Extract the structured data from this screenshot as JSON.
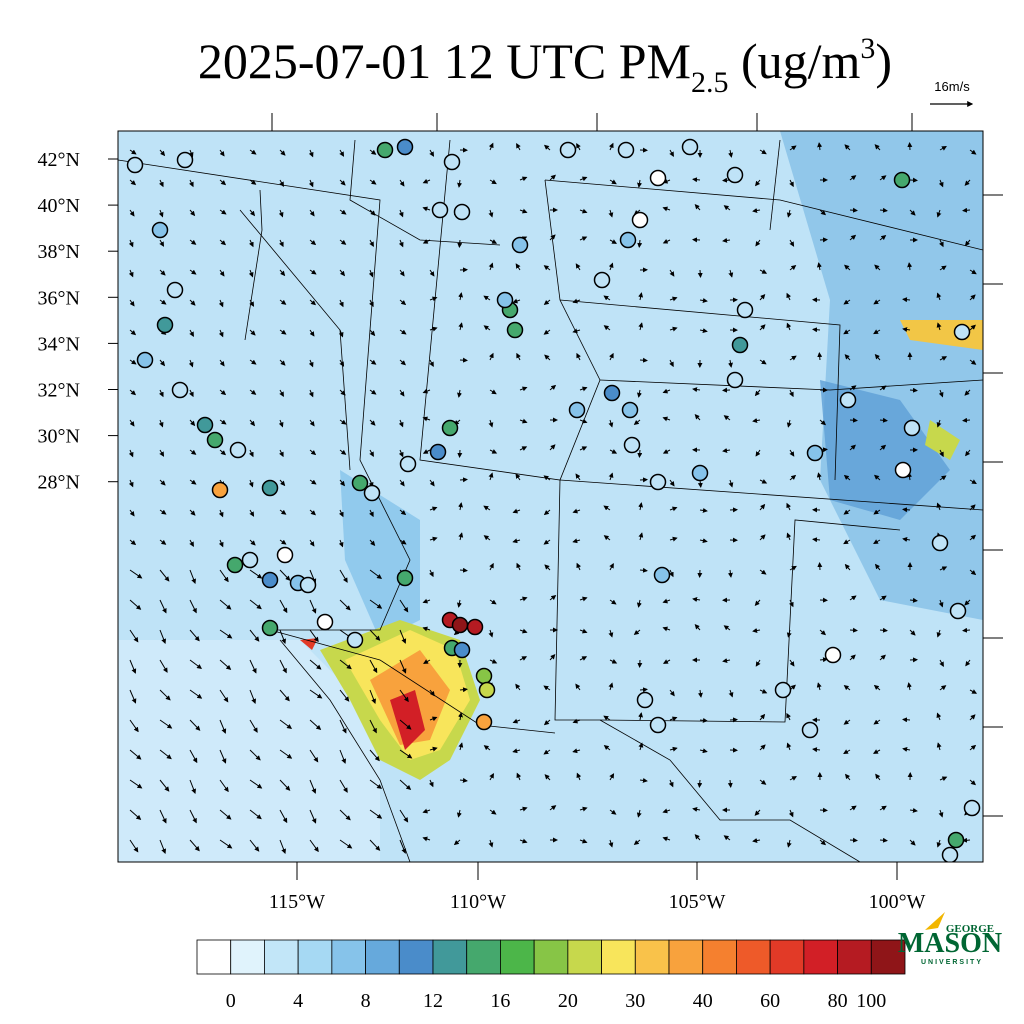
{
  "title": {
    "main": "2025-07-01 12 UTC PM",
    "subscript": "2.5",
    "units_open": " (ug/m",
    "superscript": "3",
    "units_close": ")"
  },
  "vector_scale": "16m/s",
  "lat_labels": [
    "42°N",
    "40°N",
    "38°N",
    "36°N",
    "34°N",
    "32°N",
    "30°N",
    "28°N"
  ],
  "lon_labels": [
    "115°W",
    "110°W",
    "105°W",
    "100°W"
  ],
  "colorbar": {
    "labels": [
      0,
      4,
      8,
      12,
      16,
      20,
      30,
      40,
      60,
      80,
      100
    ],
    "colors": [
      "#ffffff",
      "#e0f3fc",
      "#c2e6f8",
      "#a6d9f3",
      "#86c3ea",
      "#66a9dc",
      "#4a8cca",
      "#41999a",
      "#45a86d",
      "#4cb649",
      "#87c546",
      "#c7d84c",
      "#f8e55b",
      "#f9c24a",
      "#f8a23d",
      "#f5802f",
      "#ee5a29",
      "#e23a27",
      "#d21f26",
      "#b51b22",
      "#8f1518"
    ]
  },
  "logo": {
    "line1": "GEORGE",
    "line2": "MASON",
    "line3": "UNIVERSITY"
  }
}
